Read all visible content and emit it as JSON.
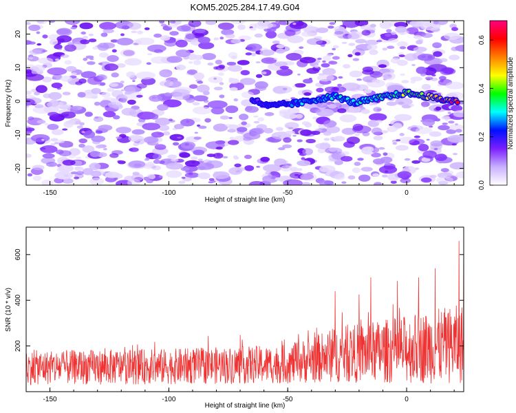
{
  "title": "KOM5.2025.284.17.49.G04",
  "chart_data": [
    {
      "type": "heatmap",
      "xlabel": "Height of straight line (km)",
      "ylabel": "Frequency (Hz)",
      "xlim": [
        -160,
        24
      ],
      "ylim": [
        -25,
        24
      ],
      "xticks": [
        -150,
        -100,
        -50,
        0
      ],
      "yticks": [
        -20,
        -10,
        0,
        10,
        20
      ],
      "colorbar": {
        "label": "Normalized spectral amplitude",
        "range": [
          0,
          0.68
        ],
        "ticks": [
          0.0,
          0.2,
          0.4,
          0.6
        ],
        "colors": [
          "#ffffff",
          "#c9b0ff",
          "#7a1fff",
          "#0010ff",
          "#00ffff",
          "#00ff00",
          "#ffff00",
          "#ff8000",
          "#ff0000",
          "#ff0080"
        ]
      },
      "signal_track": {
        "description": "frequency ridge of the signal",
        "x": [
          -65,
          -58,
          -52,
          -45,
          -38,
          -30,
          -22,
          -15,
          -8,
          0,
          8,
          15,
          22
        ],
        "y": [
          0.5,
          -1.5,
          -1.0,
          -0.5,
          0.5,
          1.5,
          -0.5,
          0.5,
          1.5,
          2.5,
          1.5,
          0.5,
          0.0
        ],
        "amplitude": [
          0.18,
          0.2,
          0.22,
          0.28,
          0.3,
          0.32,
          0.3,
          0.35,
          0.38,
          0.42,
          0.5,
          0.58,
          0.68
        ]
      }
    },
    {
      "type": "line",
      "xlabel": "Height of straight line (km)",
      "ylabel": "SNR (10 * v/v)",
      "xlim": [
        -160,
        24
      ],
      "ylim": [
        0,
        720
      ],
      "xticks": [
        -150,
        -100,
        -50,
        0
      ],
      "yticks": [
        200,
        400,
        600
      ],
      "series": [
        {
          "name": "SNR",
          "color": "#ef3333",
          "baseline_trend": {
            "x": [
              -160,
              -100,
              -50,
              -30,
              0,
              24
            ],
            "mean": [
              105,
              110,
              120,
              160,
              185,
              210
            ],
            "spread": [
              75,
              78,
              85,
              120,
              150,
              175
            ]
          },
          "peaks": [
            {
              "x": -30,
              "y": 440
            },
            {
              "x": -15,
              "y": 500
            },
            {
              "x": 5,
              "y": 500
            },
            {
              "x": 12,
              "y": 540
            },
            {
              "x": 22,
              "y": 660
            },
            {
              "x": 24,
              "y": 720
            }
          ]
        }
      ]
    }
  ]
}
